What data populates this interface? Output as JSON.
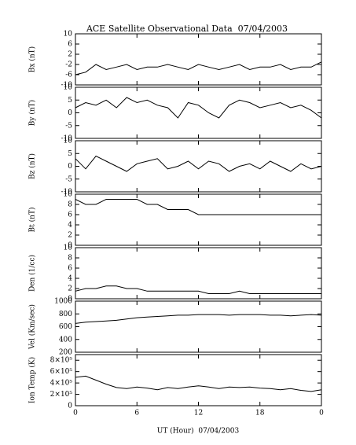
{
  "title": "ACE Satellite Observational Data  07/04/2003",
  "x_label": "UT (Hour)  07/04/2003",
  "chart_data": [
    {
      "type": "line",
      "y_label": "Bx (nT)",
      "xlim": [
        0,
        24
      ],
      "x": [
        0,
        1,
        2,
        3,
        4,
        5,
        6,
        7,
        8,
        9,
        10,
        11,
        12,
        13,
        14,
        15,
        16,
        17,
        18,
        19,
        20,
        21,
        22,
        23,
        24
      ],
      "values": [
        -6,
        -5,
        -2,
        -4,
        -3,
        -2,
        -4,
        -3,
        -3,
        -2,
        -3,
        -4,
        -2,
        -3,
        -4,
        -3,
        -2,
        -4,
        -3,
        -3,
        -2,
        -4,
        -3,
        -3,
        -1
      ],
      "ylim": [
        -10,
        10
      ],
      "yticks": [
        -10,
        -6,
        -2,
        2,
        6,
        10
      ],
      "color": "#000000"
    },
    {
      "type": "line",
      "y_label": "By (nT)",
      "xlim": [
        0,
        24
      ],
      "x": [
        0,
        1,
        2,
        3,
        4,
        5,
        6,
        7,
        8,
        9,
        10,
        11,
        12,
        13,
        14,
        15,
        16,
        17,
        18,
        19,
        20,
        21,
        22,
        23,
        24
      ],
      "values": [
        2,
        4,
        3,
        5,
        2,
        6,
        4,
        5,
        3,
        2,
        -2,
        4,
        3,
        0,
        -2,
        3,
        5,
        4,
        2,
        3,
        4,
        2,
        3,
        1,
        -2
      ],
      "ylim": [
        -10,
        10
      ],
      "yticks": [
        -10,
        -5,
        0,
        5,
        10
      ],
      "color": "#000000"
    },
    {
      "type": "line",
      "y_label": "Bz (nT)",
      "xlim": [
        0,
        24
      ],
      "x": [
        0,
        1,
        2,
        3,
        4,
        5,
        6,
        7,
        8,
        9,
        10,
        11,
        12,
        13,
        14,
        15,
        16,
        17,
        18,
        19,
        20,
        21,
        22,
        23,
        24
      ],
      "values": [
        3,
        -1,
        4,
        2,
        0,
        -2,
        1,
        2,
        3,
        -1,
        0,
        2,
        -1,
        2,
        1,
        -2,
        0,
        1,
        -1,
        2,
        0,
        -2,
        1,
        -1,
        0
      ],
      "ylim": [
        -10,
        10
      ],
      "yticks": [
        -10,
        -5,
        0,
        5,
        10
      ],
      "color": "#000000"
    },
    {
      "type": "line",
      "y_label": "Bt (nT)",
      "xlim": [
        0,
        24
      ],
      "x": [
        0,
        1,
        2,
        3,
        4,
        5,
        6,
        7,
        8,
        9,
        10,
        11,
        12,
        13,
        14,
        15,
        16,
        17,
        18,
        19,
        20,
        21,
        22,
        23,
        24
      ],
      "values": [
        9,
        8,
        8,
        9,
        9,
        9,
        9,
        8,
        8,
        7,
        7,
        7,
        6,
        6,
        6,
        6,
        6,
        6,
        6,
        6,
        6,
        6,
        6,
        6,
        6
      ],
      "ylim": [
        0,
        10
      ],
      "yticks": [
        0,
        2,
        4,
        6,
        8,
        10
      ],
      "color": "#000000"
    },
    {
      "type": "line",
      "y_label": "Den (1/cc)",
      "xlim": [
        0,
        24
      ],
      "x": [
        0,
        1,
        2,
        3,
        4,
        5,
        6,
        7,
        8,
        9,
        10,
        11,
        12,
        13,
        14,
        15,
        16,
        17,
        18,
        19,
        20,
        21,
        22,
        23,
        24
      ],
      "values": [
        1.5,
        2,
        2,
        2.5,
        2.5,
        2,
        2,
        1.5,
        1.5,
        1.5,
        1.5,
        1.5,
        1.5,
        1,
        1,
        1,
        1.5,
        1,
        1,
        1,
        1,
        1,
        1,
        1,
        1
      ],
      "ylim": [
        0,
        10
      ],
      "yticks": [
        0,
        2,
        4,
        6,
        8,
        10
      ],
      "color": "#000000"
    },
    {
      "type": "line",
      "y_label": "Vel (Km/sec)",
      "xlim": [
        0,
        24
      ],
      "x": [
        0,
        1,
        2,
        3,
        4,
        5,
        6,
        7,
        8,
        9,
        10,
        11,
        12,
        13,
        14,
        15,
        16,
        17,
        18,
        19,
        20,
        21,
        22,
        23,
        24
      ],
      "values": [
        650,
        670,
        680,
        690,
        700,
        720,
        740,
        750,
        760,
        770,
        780,
        780,
        790,
        790,
        790,
        780,
        790,
        790,
        790,
        780,
        780,
        770,
        780,
        790,
        780
      ],
      "ylim": [
        200,
        1000
      ],
      "yticks": [
        200,
        400,
        600,
        800,
        1000
      ],
      "color": "#000000"
    },
    {
      "type": "line",
      "y_label": "Ion Temp (K)",
      "xlim": [
        0,
        24
      ],
      "x": [
        0,
        1,
        2,
        3,
        4,
        5,
        6,
        7,
        8,
        9,
        10,
        11,
        12,
        13,
        14,
        15,
        16,
        17,
        18,
        19,
        20,
        21,
        22,
        23,
        24
      ],
      "values": [
        500000,
        520000,
        450000,
        380000,
        320000,
        300000,
        330000,
        310000,
        280000,
        320000,
        300000,
        330000,
        350000,
        330000,
        300000,
        330000,
        320000,
        330000,
        310000,
        300000,
        280000,
        300000,
        270000,
        250000,
        280000
      ],
      "ylim": [
        0,
        900000
      ],
      "yticks": [
        0,
        {
          "value": 200000,
          "label": "2×10⁵"
        },
        {
          "value": 400000,
          "label": "4×10⁵"
        },
        {
          "value": 600000,
          "label": "6×10⁵"
        },
        {
          "value": 800000,
          "label": "8×10⁵"
        }
      ],
      "xticks": [
        0,
        6,
        12,
        18,
        {
          "value": 24,
          "label": "0"
        }
      ],
      "color": "#000000"
    }
  ]
}
